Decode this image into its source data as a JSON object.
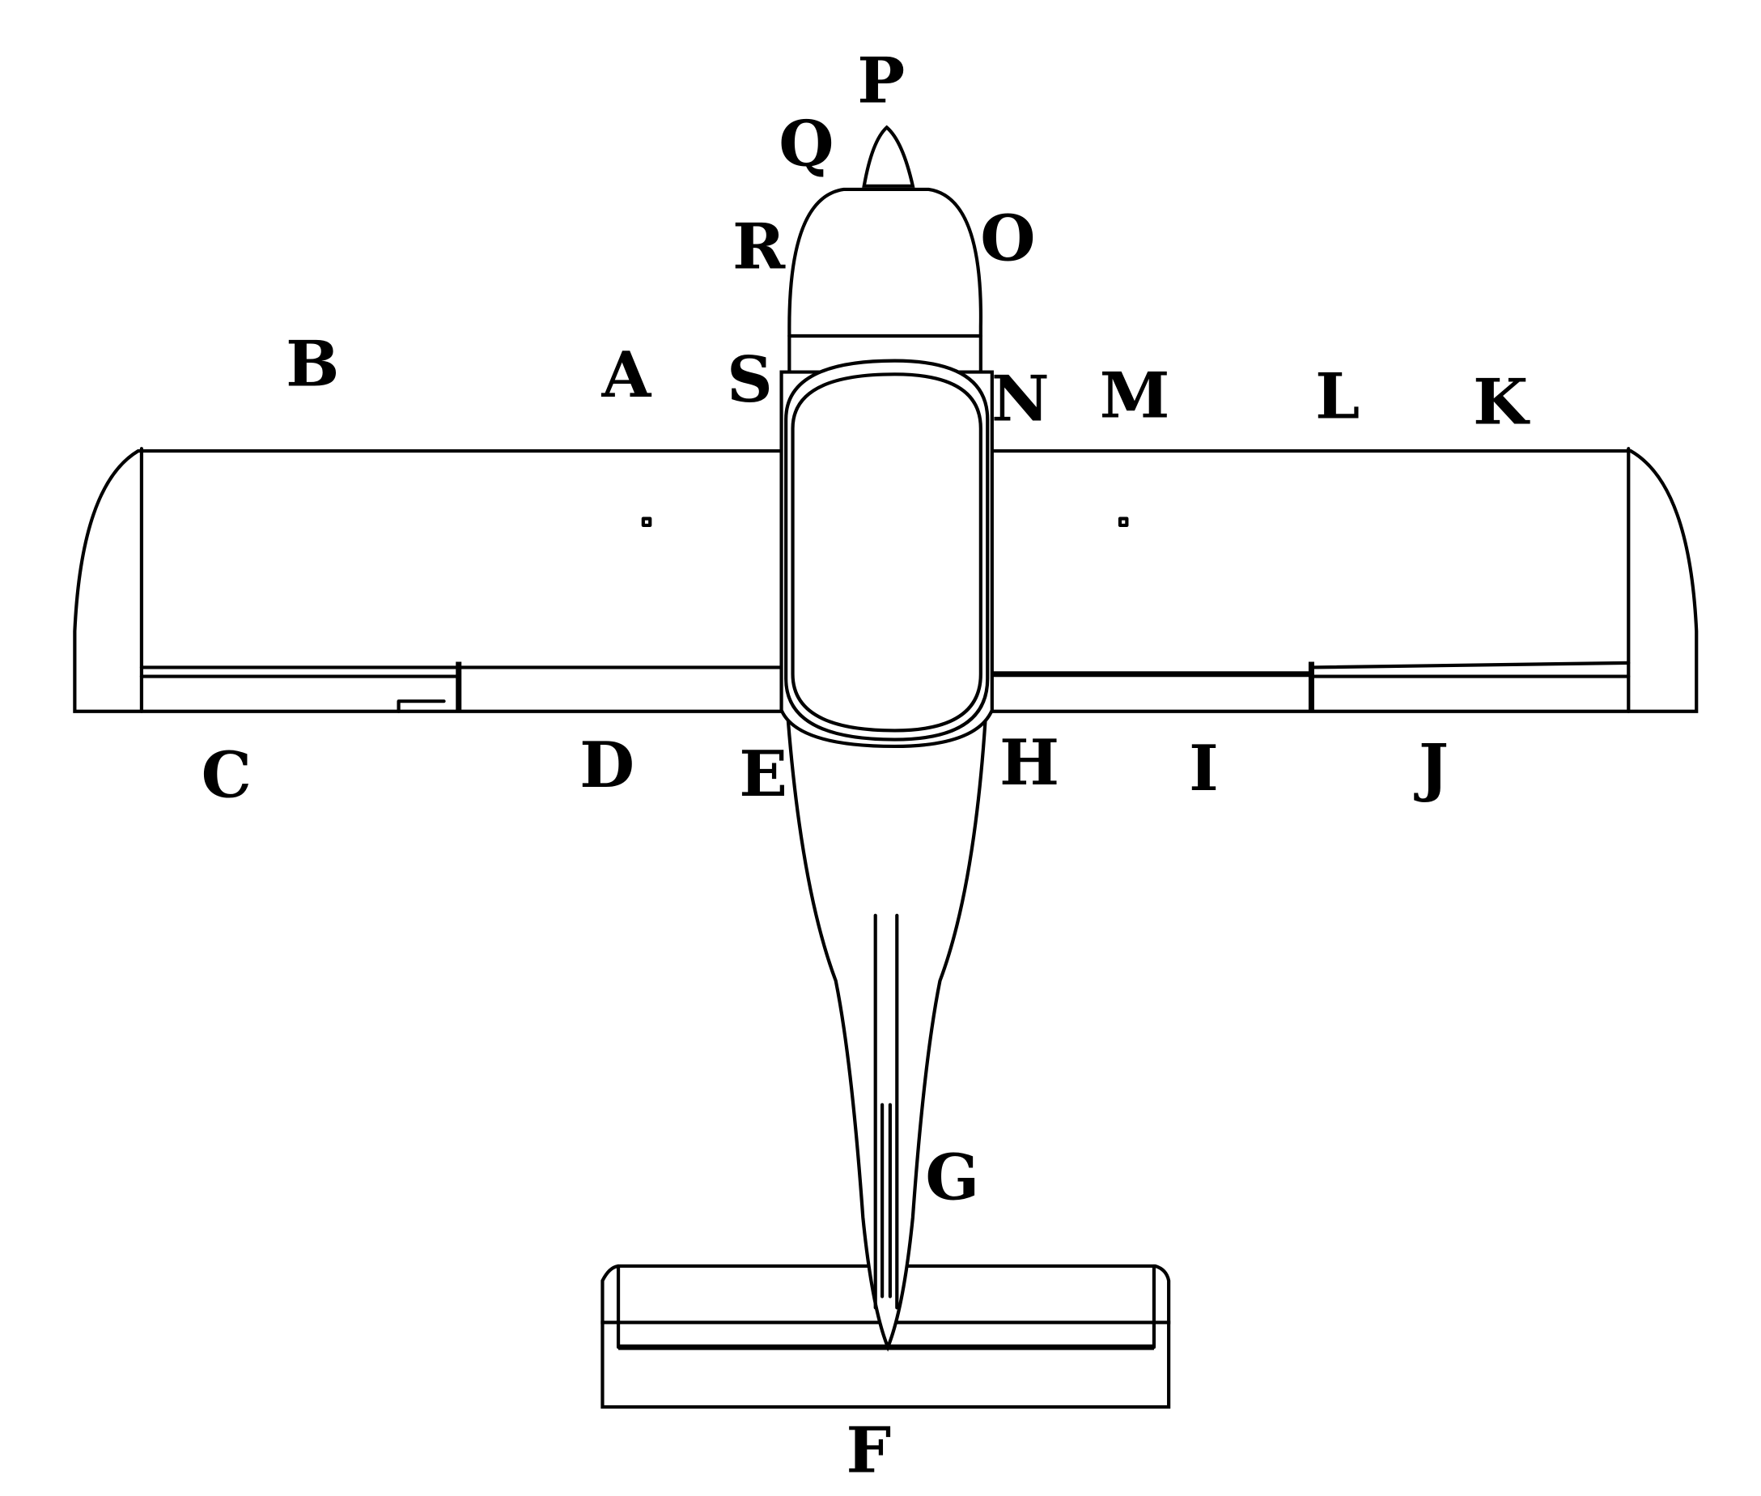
{
  "colors": {
    "background": "#ffffff",
    "line": "#000000"
  },
  "labels": {
    "A": "A",
    "B": "B",
    "C": "C",
    "D": "D",
    "E": "E",
    "F": "F",
    "G": "G",
    "H": "H",
    "I": "I",
    "J": "J",
    "K": "K",
    "L": "L",
    "M": "M",
    "N": "N",
    "O": "O",
    "P": "P",
    "Q": "Q",
    "R": "R",
    "S": "S"
  }
}
